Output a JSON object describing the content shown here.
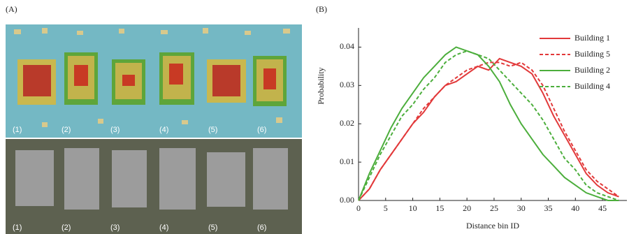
{
  "panel_a": {
    "label": "(A)",
    "top_labels": [
      "(1)",
      "(2)",
      "(3)",
      "(4)",
      "(5)",
      "(6)"
    ],
    "bottom_labels": [
      "(1)",
      "(2)",
      "(3)",
      "(4)",
      "(5)",
      "(6)"
    ]
  },
  "chart_data": {
    "type": "line",
    "panel_label": "(B)",
    "x_label": "Distance bin ID",
    "y_label": "Probability",
    "x": [
      0,
      2,
      4,
      6,
      8,
      10,
      12,
      14,
      16,
      18,
      20,
      22,
      24,
      26,
      28,
      30,
      32,
      34,
      36,
      38,
      40,
      42,
      44,
      46,
      48
    ],
    "series": [
      {
        "name": "Building 1",
        "color": "#e2393a",
        "dash": false,
        "values": [
          0,
          0.003,
          0.008,
          0.012,
          0.016,
          0.02,
          0.023,
          0.027,
          0.03,
          0.031,
          0.033,
          0.035,
          0.034,
          0.037,
          0.036,
          0.035,
          0.033,
          0.028,
          0.022,
          0.017,
          0.012,
          0.007,
          0.004,
          0.002,
          0.001
        ]
      },
      {
        "name": "Building 5",
        "color": "#e2393a",
        "dash": true,
        "values": [
          0,
          0.003,
          0.008,
          0.012,
          0.016,
          0.02,
          0.024,
          0.027,
          0.03,
          0.032,
          0.034,
          0.035,
          0.036,
          0.036,
          0.035,
          0.036,
          0.034,
          0.03,
          0.024,
          0.018,
          0.013,
          0.008,
          0.005,
          0.003,
          0.001
        ]
      },
      {
        "name": "Building 2",
        "color": "#4cae3c",
        "dash": false,
        "values": [
          0,
          0.007,
          0.013,
          0.019,
          0.024,
          0.028,
          0.032,
          0.035,
          0.038,
          0.04,
          0.039,
          0.038,
          0.035,
          0.031,
          0.025,
          0.02,
          0.016,
          0.012,
          0.009,
          0.006,
          0.004,
          0.002,
          0.001,
          0,
          0
        ]
      },
      {
        "name": "Building 4",
        "color": "#4cae3c",
        "dash": true,
        "values": [
          0,
          0.006,
          0.012,
          0.017,
          0.022,
          0.025,
          0.029,
          0.032,
          0.036,
          0.038,
          0.039,
          0.038,
          0.037,
          0.034,
          0.031,
          0.028,
          0.025,
          0.021,
          0.016,
          0.011,
          0.008,
          0.004,
          0.002,
          0.001,
          0
        ]
      }
    ],
    "xlim": [
      0,
      49.5
    ],
    "ylim": [
      0,
      0.045
    ],
    "xticks": [
      0,
      5,
      10,
      15,
      20,
      25,
      30,
      35,
      40,
      45
    ],
    "yticks": [
      {
        "value": 0,
        "label": "0.00"
      },
      0.01,
      0.02,
      0.03,
      0.04
    ],
    "legend": "upper right",
    "grid": false
  }
}
